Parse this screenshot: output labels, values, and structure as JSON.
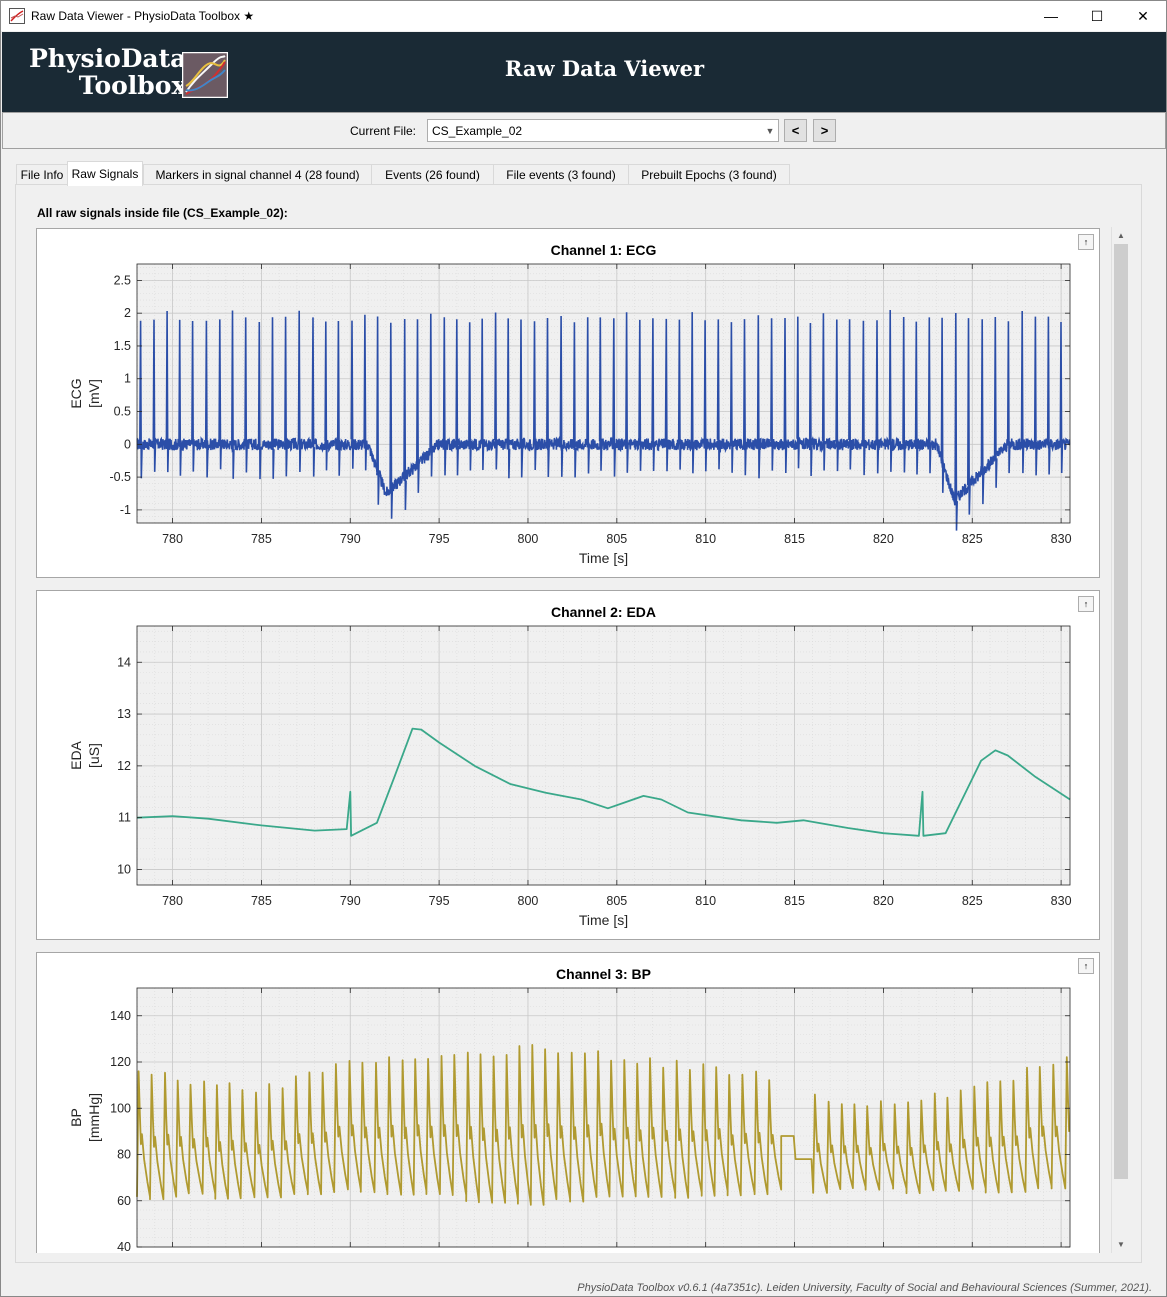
{
  "window": {
    "title": "Raw Data Viewer - PhysioData Toolbox ★",
    "minimize": "—",
    "maximize": "☐",
    "close": "✕"
  },
  "banner": {
    "logo_line1": "PhysioData",
    "logo_line2": "Toolbox",
    "title": "Raw Data Viewer"
  },
  "filebar": {
    "label": "Current File:",
    "value": "CS_Example_02",
    "prev": "<",
    "next": ">"
  },
  "tabs": [
    {
      "label": "File Info",
      "active": false
    },
    {
      "label": "Raw Signals",
      "active": true
    },
    {
      "label": "Markers in signal channel 4 (28 found)",
      "active": false
    },
    {
      "label": "Events (26 found)",
      "active": false
    },
    {
      "label": "File events (3 found)",
      "active": false
    },
    {
      "label": "Prebuilt Epochs (3 found)",
      "active": false
    }
  ],
  "panel": {
    "heading": "All raw signals inside file (CS_Example_02):"
  },
  "pin_label": "↑",
  "footer": "PhysioData Toolbox v0.6.1 (4a7351c). Leiden University, Faculty of Social and Behavioural Sciences (Summer, 2021).",
  "colors": {
    "banner_bg": "#1a2a35",
    "ecg": "#2b4ea8",
    "eda": "#3aa88a",
    "bp": "#b09a30",
    "plot_bg": "#f0f0f0",
    "grid": "#c8c8c8"
  },
  "chart_data": [
    {
      "type": "line",
      "title": "Channel 1: ECG",
      "xlabel": "Time [s]",
      "ylabel": "ECG",
      "yunit": "[mV]",
      "xlim": [
        778,
        830.5
      ],
      "ylim": [
        -1.2,
        2.75
      ],
      "xticks": [
        780,
        785,
        790,
        795,
        800,
        805,
        810,
        815,
        820,
        825,
        830
      ],
      "yticks": [
        -1,
        -0.5,
        0,
        0.5,
        1,
        1.5,
        2,
        2.5
      ],
      "ytick_labels": [
        "-1",
        "-0.5",
        "0",
        "0.5",
        "1",
        "1.5",
        "2",
        "2.5"
      ],
      "grid": true,
      "signal": "ecg",
      "heart_rate_hz": 1.35,
      "r_peak": 1.95,
      "baseline_dips": [
        [
          792,
          -0.75
        ],
        [
          824,
          -0.85
        ]
      ]
    },
    {
      "type": "line",
      "title": "Channel 2: EDA",
      "xlabel": "Time [s]",
      "ylabel": "EDA",
      "yunit": "[uS]",
      "xlim": [
        778,
        830.5
      ],
      "ylim": [
        9.7,
        14.7
      ],
      "xticks": [
        780,
        785,
        790,
        795,
        800,
        805,
        810,
        815,
        820,
        825,
        830
      ],
      "yticks": [
        10,
        11,
        12,
        13,
        14
      ],
      "ytick_labels": [
        "10",
        "11",
        "12",
        "13",
        "14"
      ],
      "grid": true,
      "signal": "eda",
      "points": [
        [
          778,
          11.0
        ],
        [
          780,
          11.03
        ],
        [
          782,
          10.98
        ],
        [
          785,
          10.85
        ],
        [
          788,
          10.75
        ],
        [
          789.8,
          10.78
        ],
        [
          790,
          11.5
        ],
        [
          790.05,
          10.65
        ],
        [
          791.5,
          10.9
        ],
        [
          792.5,
          11.8
        ],
        [
          793.5,
          12.72
        ],
        [
          794,
          12.7
        ],
        [
          795,
          12.45
        ],
        [
          797,
          12.0
        ],
        [
          799,
          11.65
        ],
        [
          801,
          11.48
        ],
        [
          803,
          11.35
        ],
        [
          804.5,
          11.18
        ],
        [
          805.5,
          11.3
        ],
        [
          806.5,
          11.42
        ],
        [
          807.5,
          11.35
        ],
        [
          809,
          11.1
        ],
        [
          812,
          10.95
        ],
        [
          814,
          10.9
        ],
        [
          815.5,
          10.95
        ],
        [
          818,
          10.8
        ],
        [
          820,
          10.7
        ],
        [
          822,
          10.65
        ],
        [
          822.2,
          11.5
        ],
        [
          822.25,
          10.65
        ],
        [
          823.5,
          10.7
        ],
        [
          824.5,
          11.4
        ],
        [
          825.5,
          12.1
        ],
        [
          826.3,
          12.3
        ],
        [
          827,
          12.2
        ],
        [
          828.5,
          11.8
        ],
        [
          830.5,
          11.35
        ]
      ]
    },
    {
      "type": "line",
      "title": "Channel 3: BP",
      "xlabel": "Time [s]",
      "ylabel": "BP",
      "yunit": "[mmHg]",
      "xlim": [
        778,
        830.5
      ],
      "ylim": [
        40,
        152
      ],
      "xticks": [
        780,
        785,
        790,
        795,
        800,
        805,
        810,
        815,
        820,
        825,
        830
      ],
      "yticks": [
        40,
        60,
        80,
        100,
        120,
        140
      ],
      "ytick_labels": [
        "40",
        "60",
        "80",
        "100",
        "120",
        "140"
      ],
      "grid": true,
      "signal": "bp",
      "heart_rate_hz": 1.35,
      "systolic_envelope": [
        [
          778,
          115
        ],
        [
          785,
          108
        ],
        [
          790,
          120
        ],
        [
          795,
          122
        ],
        [
          800,
          126
        ],
        [
          805,
          122
        ],
        [
          810,
          117
        ],
        [
          815,
          112
        ],
        [
          818,
          100
        ],
        [
          822,
          103
        ],
        [
          826,
          110
        ],
        [
          830.5,
          124
        ]
      ],
      "diastolic_envelope": [
        [
          778,
          62
        ],
        [
          785,
          62
        ],
        [
          790,
          65
        ],
        [
          795,
          62
        ],
        [
          800,
          59
        ],
        [
          805,
          62
        ],
        [
          810,
          63
        ],
        [
          815,
          64
        ],
        [
          820,
          65
        ],
        [
          825,
          64
        ],
        [
          830.5,
          67
        ]
      ],
      "flat_segment": [
        [
          814,
          816
        ],
        [
          88,
          78
        ]
      ]
    }
  ]
}
